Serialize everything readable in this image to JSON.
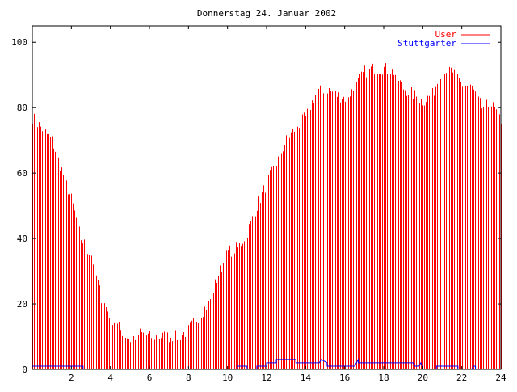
{
  "chart_data": {
    "type": "bar",
    "title": "Donnerstag 24. Januar 2002",
    "xlabel": "",
    "ylabel": "",
    "xlim": [
      0,
      24
    ],
    "ylim": [
      0,
      105
    ],
    "x_ticks": [
      2,
      4,
      6,
      8,
      10,
      12,
      14,
      16,
      18,
      20,
      22,
      24
    ],
    "y_ticks": [
      0,
      20,
      40,
      60,
      80,
      100
    ],
    "legend_position": "top-right",
    "grid": false,
    "colors": {
      "User": "#ff0000",
      "Stuttgarter": "#0000ff",
      "axes": "#000000"
    },
    "series": [
      {
        "name": "User",
        "style": "impulses",
        "x": [
          0,
          1,
          2,
          2.5,
          3,
          3.5,
          4,
          4.5,
          5,
          5.5,
          6,
          6.5,
          7,
          7.5,
          8,
          8.5,
          9,
          9.5,
          10,
          10.5,
          11,
          11.5,
          12,
          12.5,
          13,
          13.5,
          14,
          14.5,
          15,
          15.5,
          16,
          16.5,
          17,
          17.5,
          18,
          18.5,
          19,
          19.5,
          20,
          20.5,
          21,
          21.5,
          22,
          22.5,
          23,
          23.5,
          24
        ],
        "values": [
          77,
          70,
          52,
          40,
          35,
          22,
          16,
          12,
          9,
          11,
          10,
          10,
          10,
          10,
          12,
          16,
          20,
          29,
          36,
          37,
          42,
          50,
          57,
          63,
          70,
          74,
          77,
          84,
          86,
          84,
          83,
          86,
          91,
          92,
          92,
          91,
          86,
          84,
          82,
          84,
          92,
          91,
          87,
          86,
          80,
          81,
          76
        ]
      },
      {
        "name": "Stuttgarter",
        "style": "line",
        "x": [
          0,
          2.6,
          2.6,
          10.5,
          10.5,
          11,
          11,
          11.5,
          11.5,
          12,
          12,
          12.5,
          12.5,
          13.5,
          13.5,
          14.7,
          14.8,
          15.1,
          15.1,
          16.5,
          16.6,
          16.7,
          16.7,
          19.5,
          19.6,
          19.8,
          19.9,
          20,
          20,
          20.7,
          20.7,
          21.8,
          21.8,
          22.5,
          22.6,
          22.7,
          22.7,
          24
        ],
        "values": [
          1,
          1,
          0,
          0,
          1,
          1,
          0,
          0,
          1,
          1,
          2,
          2,
          3,
          3,
          2,
          2,
          3,
          2,
          1,
          1,
          2,
          3,
          2,
          2,
          1,
          1,
          2,
          1,
          0,
          0,
          1,
          1,
          0,
          0,
          1,
          1,
          0,
          0
        ]
      }
    ]
  }
}
